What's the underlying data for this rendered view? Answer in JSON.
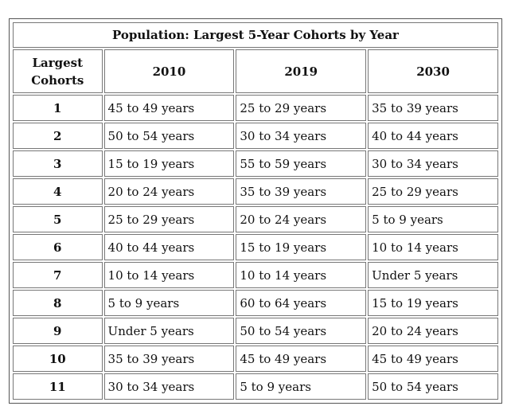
{
  "table": {
    "title": "Population: Largest 5-Year Cohorts by Year",
    "headers": [
      "Largest Cohorts",
      "2010",
      "2019",
      "2030"
    ],
    "rows": [
      {
        "rank": "1",
        "y2010": "45 to 49 years",
        "y2019": "25 to 29 years",
        "y2030": "35 to 39 years"
      },
      {
        "rank": "2",
        "y2010": "50 to 54 years",
        "y2019": "30 to 34 years",
        "y2030": "40 to 44 years"
      },
      {
        "rank": "3",
        "y2010": "15 to 19 years",
        "y2019": "55 to 59 years",
        "y2030": "30 to 34 years"
      },
      {
        "rank": "4",
        "y2010": "20 to 24 years",
        "y2019": "35 to 39 years",
        "y2030": "25 to 29 years"
      },
      {
        "rank": "5",
        "y2010": "25 to 29 years",
        "y2019": "20 to 24 years",
        "y2030": "5 to 9 years"
      },
      {
        "rank": "6",
        "y2010": "40 to 44 years",
        "y2019": "15 to 19 years",
        "y2030": "10 to 14 years"
      },
      {
        "rank": "7",
        "y2010": "10 to 14 years",
        "y2019": "10 to 14 years",
        "y2030": "Under 5 years"
      },
      {
        "rank": "8",
        "y2010": "5 to 9 years",
        "y2019": "60 to 64 years",
        "y2030": "15 to 19 years"
      },
      {
        "rank": "9",
        "y2010": "Under 5 years",
        "y2019": "50 to 54 years",
        "y2030": "20 to 24 years"
      },
      {
        "rank": "10",
        "y2010": "35 to 39 years",
        "y2019": "45 to 49 years",
        "y2030": "45 to 49 years"
      },
      {
        "rank": "11",
        "y2010": "30 to 34 years",
        "y2019": "5 to 9 years",
        "y2030": "50 to 54 years"
      }
    ]
  }
}
